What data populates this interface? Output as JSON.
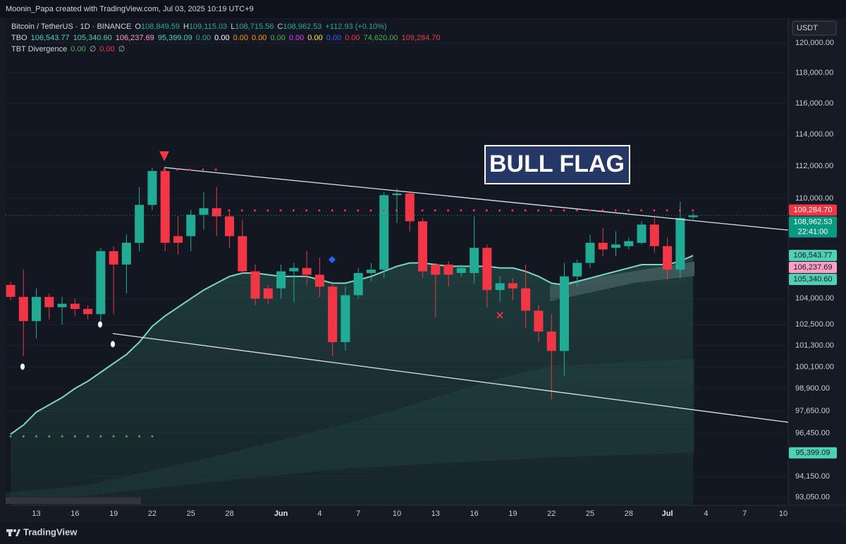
{
  "chart_data": {
    "type": "candlestick",
    "attribution": "Moonin_Papa created with TradingView.com, Jul 03, 2025 10:19 UTC+9",
    "symbol_line": {
      "name": "Bitcoin / TetherUS · 1D · BINANCE",
      "ohlc": [
        {
          "key": "O",
          "value": "108,849.59"
        },
        {
          "key": "H",
          "value": "109,115.03"
        },
        {
          "key": "L",
          "value": "108,715.56"
        },
        {
          "key": "C",
          "value": "108,962.53"
        }
      ],
      "change": "+112.93 (+0.10%)"
    },
    "indicators": [
      {
        "name": "TBO",
        "values": [
          {
            "text": "106,543.77",
            "color": "#4fd1b5"
          },
          {
            "text": "105,340.60",
            "color": "#4fd1b5"
          },
          {
            "text": "106,237.69",
            "color": "#f7a1c4"
          },
          {
            "text": "95,399.09",
            "color": "#4fd1b5"
          },
          {
            "text": "0.00",
            "color": "#22ab94"
          },
          {
            "text": "0.00",
            "color": "#ffffff"
          },
          {
            "text": "0.00",
            "color": "#ff9800"
          },
          {
            "text": "0.00",
            "color": "#ff9800"
          },
          {
            "text": "0.00",
            "color": "#4caf50"
          },
          {
            "text": "0.00",
            "color": "#e040fb"
          },
          {
            "text": "0.00",
            "color": "#ffeb3b"
          },
          {
            "text": "0.00",
            "color": "#2962ff"
          },
          {
            "text": "0.00",
            "color": "#f23645"
          },
          {
            "text": "74,620.00",
            "color": "#4caf50"
          },
          {
            "text": "109,284.70",
            "color": "#f23645"
          }
        ]
      },
      {
        "name": "TBT Divergence",
        "values": [
          {
            "text": "0.00",
            "color": "#4caf50"
          },
          {
            "text": "∅",
            "color": "#b2b5be"
          },
          {
            "text": "0.00",
            "color": "#f23645"
          },
          {
            "text": "∅",
            "color": "#b2b5be"
          }
        ]
      }
    ],
    "currency": "USDT",
    "annotations": [
      "BULL FLAG"
    ],
    "footer": "TradingView",
    "log_scale": true,
    "up_color": "#22ab94",
    "down_color": "#f23645",
    "categories": [
      null,
      null,
      "13",
      null,
      null,
      "16",
      null,
      null,
      "19",
      null,
      null,
      "22",
      null,
      null,
      "25",
      null,
      null,
      "28",
      null,
      null,
      null,
      "Jun",
      null,
      null,
      "4",
      null,
      null,
      "7",
      null,
      null,
      "10",
      null,
      null,
      "13",
      null,
      null,
      "16",
      null,
      null,
      "19",
      null,
      null,
      "22",
      null,
      null,
      "25",
      null,
      null,
      "28",
      null,
      null,
      "Jul",
      null,
      null,
      "4",
      null,
      null,
      "7",
      null,
      null,
      "10"
    ],
    "open": [
      104800,
      104100,
      102700,
      104100,
      103500,
      103700,
      103400,
      103100,
      106800,
      106000,
      107300,
      109600,
      111700,
      107700,
      107700,
      109000,
      109400,
      108900,
      107700,
      105600,
      104600,
      104600,
      105600,
      105800,
      105400,
      104700,
      101500,
      104200,
      105500,
      105700,
      110200,
      110300,
      108600,
      106000,
      106000,
      105500,
      105500,
      107000,
      104500,
      104900,
      104600,
      103300,
      102100,
      101000,
      105300,
      106100,
      107300,
      107000,
      107100,
      107300,
      108400,
      107100,
      105700,
      108849.59,
      null,
      null,
      null,
      null,
      null,
      null,
      null
    ],
    "high": [
      105000,
      105700,
      104600,
      104300,
      104100,
      104000,
      103600,
      107000,
      107100,
      107800,
      110700,
      111900,
      111900,
      108900,
      109300,
      110400,
      110700,
      109300,
      108700,
      106000,
      104800,
      106000,
      106100,
      106800,
      106400,
      105000,
      104700,
      105800,
      106100,
      110400,
      110600,
      110400,
      108800,
      106100,
      106200,
      106000,
      108900,
      107200,
      105300,
      105200,
      106000,
      103600,
      103100,
      106100,
      106300,
      107800,
      108200,
      108000,
      107600,
      108600,
      108800,
      107600,
      109800,
      109115.03,
      null,
      null,
      null,
      null,
      null,
      null,
      null
    ],
    "low": [
      103900,
      100700,
      101700,
      102800,
      102500,
      103000,
      102800,
      102700,
      103100,
      104300,
      106800,
      109300,
      106800,
      106600,
      106800,
      108100,
      107700,
      107000,
      105400,
      103600,
      103700,
      104000,
      103800,
      104800,
      104100,
      100700,
      101000,
      104000,
      105000,
      105200,
      108500,
      108000,
      105200,
      102900,
      104700,
      105300,
      104900,
      103500,
      103800,
      103900,
      102300,
      101500,
      98300,
      99600,
      104700,
      105800,
      106500,
      106500,
      106900,
      107200,
      106700,
      105100,
      105200,
      108715.56,
      null,
      null,
      null,
      null,
      null,
      null,
      null
    ],
    "close": [
      104100,
      102700,
      104100,
      103500,
      103700,
      103400,
      103100,
      106800,
      106000,
      107300,
      109600,
      111700,
      107300,
      107300,
      109000,
      109400,
      108900,
      107700,
      105600,
      104000,
      104000,
      105600,
      105800,
      105400,
      104700,
      101500,
      104200,
      105500,
      105700,
      110200,
      110300,
      108600,
      105600,
      105400,
      105400,
      105800,
      107000,
      104500,
      104900,
      104600,
      103300,
      102100,
      101000,
      105300,
      106100,
      107300,
      106900,
      107200,
      107400,
      108400,
      107100,
      105700,
      108800,
      108962.53,
      null,
      null,
      null,
      null,
      null,
      null,
      null
    ],
    "overlays": [
      {
        "color": "#7fd6c2",
        "values": [
          96400,
          96900,
          97600,
          98000,
          98400,
          98900,
          99300,
          99800,
          100300,
          100800,
          101500,
          102400,
          103000,
          103500,
          104000,
          104500,
          104900,
          105300,
          105500,
          105500,
          105400,
          105300,
          105300,
          105300,
          105100,
          104900,
          104900,
          105100,
          105300,
          105600,
          105900,
          106100,
          106100,
          106000,
          105900,
          105900,
          105900,
          105900,
          105800,
          105800,
          105600,
          105300,
          104900,
          104800,
          105000,
          105200,
          105400,
          105600,
          105800,
          106000,
          106000,
          106000,
          106200,
          106543.77,
          null,
          null,
          null,
          null,
          null,
          null,
          null
        ]
      }
    ],
    "price_tags": [
      {
        "value": 109284.7,
        "label": "109,284.70",
        "color": "#f23645"
      },
      {
        "value": 108962.53,
        "label": "108,962.53",
        "sub": "22:41:00",
        "color": "#089981"
      },
      {
        "value": 106543.77,
        "label": "106,543.77",
        "color": "#4fd1b5"
      },
      {
        "value": 106237.69,
        "label": "106,237.69",
        "color": "#f7a1c4"
      },
      {
        "value": 105340.6,
        "label": "105,340.60",
        "color": "#4fd1b5"
      },
      {
        "value": 95399.09,
        "label": "95,399.09",
        "color": "#4fd1b5"
      }
    ],
    "ylim": [
      92640,
      121235
    ],
    "yticks": [
      {
        "value": 93050,
        "label": "93,050.00"
      },
      {
        "value": 94150,
        "label": "94,150.00"
      },
      {
        "value": 96450,
        "label": "96,450.00"
      },
      {
        "value": 97650,
        "label": "97,650.00"
      },
      {
        "value": 98900,
        "label": "98,900.00"
      },
      {
        "value": 100100,
        "label": "100,100.00"
      },
      {
        "value": 101300,
        "label": "101,300.00"
      },
      {
        "value": 102500,
        "label": "102,500.00"
      },
      {
        "value": 104000,
        "label": "104,000.00"
      },
      {
        "value": 110000,
        "label": "110,000.00"
      },
      {
        "value": 112000,
        "label": "112,000.00"
      },
      {
        "value": 114000,
        "label": "114,000.00"
      },
      {
        "value": 116000,
        "label": "116,000.00"
      },
      {
        "value": 118000,
        "label": "118,000.00"
      },
      {
        "value": 120000,
        "label": "120,000.00"
      }
    ]
  }
}
